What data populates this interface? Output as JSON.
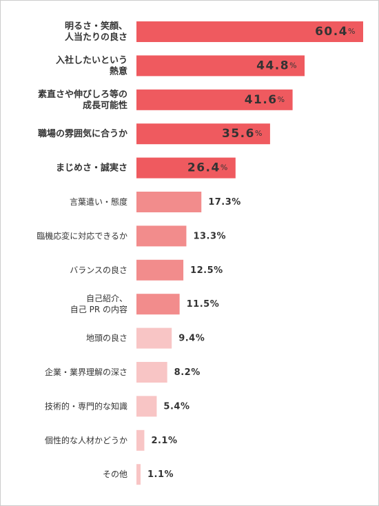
{
  "chart_data": {
    "type": "bar",
    "orientation": "horizontal",
    "categories": [
      "明るさ・笑顔、\n人当たりの良さ",
      "入社したいという\n熱意",
      "素直さや伸びしろ等の\n成長可能性",
      "職場の雰囲気に合うか",
      "まじめさ・誠実さ",
      "言葉遣い・態度",
      "臨機応変に対応できるか",
      "バランスの良さ",
      "自己紹介、\n自己 PR の内容",
      "地頭の良さ",
      "企業・業界理解の深さ",
      "技術的・専門的な知識",
      "個性的な人材かどうか",
      "その他"
    ],
    "values": [
      60.4,
      44.8,
      41.6,
      35.6,
      26.4,
      17.3,
      13.3,
      12.5,
      11.5,
      9.4,
      8.2,
      5.4,
      2.1,
      1.1
    ],
    "value_labels": [
      "60.4%",
      "44.8%",
      "41.6%",
      "35.6%",
      "26.4%",
      "17.3%",
      "13.3%",
      "12.5%",
      "11.5%",
      "9.4%",
      "8.2%",
      "5.4%",
      "2.1%",
      "1.1%"
    ],
    "colors": [
      "#ef5a5f",
      "#ef5a5f",
      "#ef5a5f",
      "#ef5a5f",
      "#ef5a5f",
      "#f28c8c",
      "#f28c8c",
      "#f28c8c",
      "#f28c8c",
      "#f8c5c5",
      "#f8c5c5",
      "#f8c5c5",
      "#f8c5c5",
      "#f8c5c5"
    ]
  }
}
